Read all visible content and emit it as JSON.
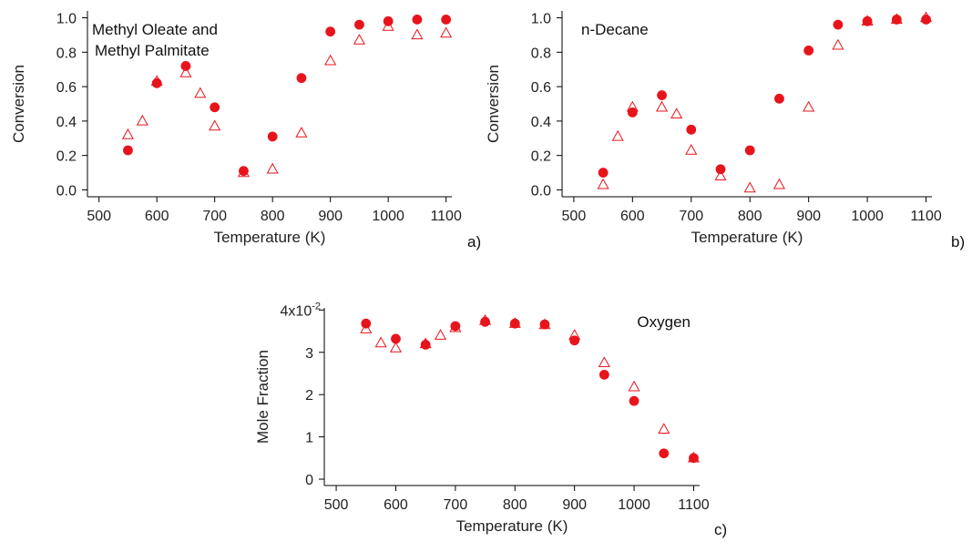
{
  "chart_data": [
    {
      "type": "scatter",
      "panel_label": "a)",
      "annotation": "Methyl Oleate and\nMethyl Palmitate",
      "xlabel": "Temperature (K)",
      "ylabel": "Conversion",
      "xlim": [
        480,
        1110
      ],
      "ylim": [
        -0.04,
        1.04
      ],
      "xticks": [
        500,
        600,
        700,
        800,
        900,
        1000,
        1100
      ],
      "yticks": [
        0.0,
        0.2,
        0.4,
        0.6,
        0.8,
        1.0
      ],
      "ytick_labels": [
        "0.0",
        "0.2",
        "0.4",
        "0.6",
        "0.8",
        "1.0"
      ],
      "grid": false,
      "series": [
        {
          "marker": "filled-circle",
          "color": "#e8141c",
          "x": [
            550,
            600,
            650,
            700,
            750,
            800,
            850,
            900,
            950,
            1000,
            1050,
            1100
          ],
          "y": [
            0.23,
            0.62,
            0.72,
            0.48,
            0.11,
            0.31,
            0.65,
            0.92,
            0.96,
            0.98,
            0.99,
            0.99
          ]
        },
        {
          "marker": "open-triangle",
          "color": "#e8141c",
          "x": [
            550,
            575,
            600,
            650,
            675,
            700,
            750,
            800,
            850,
            900,
            950,
            1000,
            1050,
            1100
          ],
          "y": [
            0.32,
            0.4,
            0.63,
            0.68,
            0.56,
            0.37,
            0.1,
            0.12,
            0.33,
            0.75,
            0.87,
            0.95,
            0.9,
            0.91
          ]
        }
      ]
    },
    {
      "type": "scatter",
      "panel_label": "b)",
      "annotation": "n-Decane",
      "xlabel": "Temperature (K)",
      "ylabel": "Conversion",
      "xlim": [
        480,
        1110
      ],
      "ylim": [
        -0.04,
        1.04
      ],
      "xticks": [
        500,
        600,
        700,
        800,
        900,
        1000,
        1100
      ],
      "yticks": [
        0.0,
        0.2,
        0.4,
        0.6,
        0.8,
        1.0
      ],
      "ytick_labels": [
        "0.0",
        "0.2",
        "0.4",
        "0.6",
        "0.8",
        "1.0"
      ],
      "grid": false,
      "series": [
        {
          "marker": "filled-circle",
          "color": "#e8141c",
          "x": [
            550,
            600,
            650,
            700,
            750,
            800,
            850,
            900,
            950,
            1000,
            1050,
            1100
          ],
          "y": [
            0.1,
            0.45,
            0.55,
            0.35,
            0.12,
            0.23,
            0.53,
            0.81,
            0.96,
            0.98,
            0.99,
            0.99
          ]
        },
        {
          "marker": "open-triangle",
          "color": "#e8141c",
          "x": [
            550,
            575,
            600,
            650,
            675,
            700,
            750,
            800,
            850,
            900,
            950,
            1000,
            1050,
            1100
          ],
          "y": [
            0.03,
            0.31,
            0.48,
            0.48,
            0.44,
            0.23,
            0.08,
            0.01,
            0.03,
            0.48,
            0.84,
            0.98,
            0.99,
            1.0
          ]
        }
      ]
    },
    {
      "type": "scatter",
      "panel_label": "c)",
      "annotation": "Oxygen",
      "xlabel": "Temperature (K)",
      "ylabel": "Mole Fraction",
      "xlim": [
        480,
        1110
      ],
      "ylim": [
        -0.0015,
        0.0405
      ],
      "xticks": [
        500,
        600,
        700,
        800,
        900,
        1000,
        1100
      ],
      "yticks": [
        0,
        0.01,
        0.02,
        0.03
      ],
      "ytick_labels": [
        "0",
        "1",
        "2",
        "3"
      ],
      "top_tick_label": "4x10",
      "top_tick_exponent": "-2",
      "grid": false,
      "series": [
        {
          "marker": "filled-circle",
          "color": "#e8141c",
          "x": [
            550,
            600,
            650,
            700,
            750,
            800,
            850,
            900,
            950,
            1000,
            1050,
            1100
          ],
          "y": [
            0.0368,
            0.0332,
            0.0318,
            0.0362,
            0.0372,
            0.0368,
            0.0366,
            0.0328,
            0.0247,
            0.0185,
            0.0061,
            0.005
          ]
        },
        {
          "marker": "open-triangle",
          "color": "#e8141c",
          "x": [
            550,
            575,
            600,
            650,
            675,
            700,
            750,
            800,
            850,
            900,
            950,
            1000,
            1050,
            1100
          ],
          "y": [
            0.0355,
            0.0322,
            0.031,
            0.032,
            0.034,
            0.0358,
            0.0375,
            0.0368,
            0.0365,
            0.034,
            0.0275,
            0.0218,
            0.0118,
            0.005
          ]
        }
      ]
    }
  ]
}
